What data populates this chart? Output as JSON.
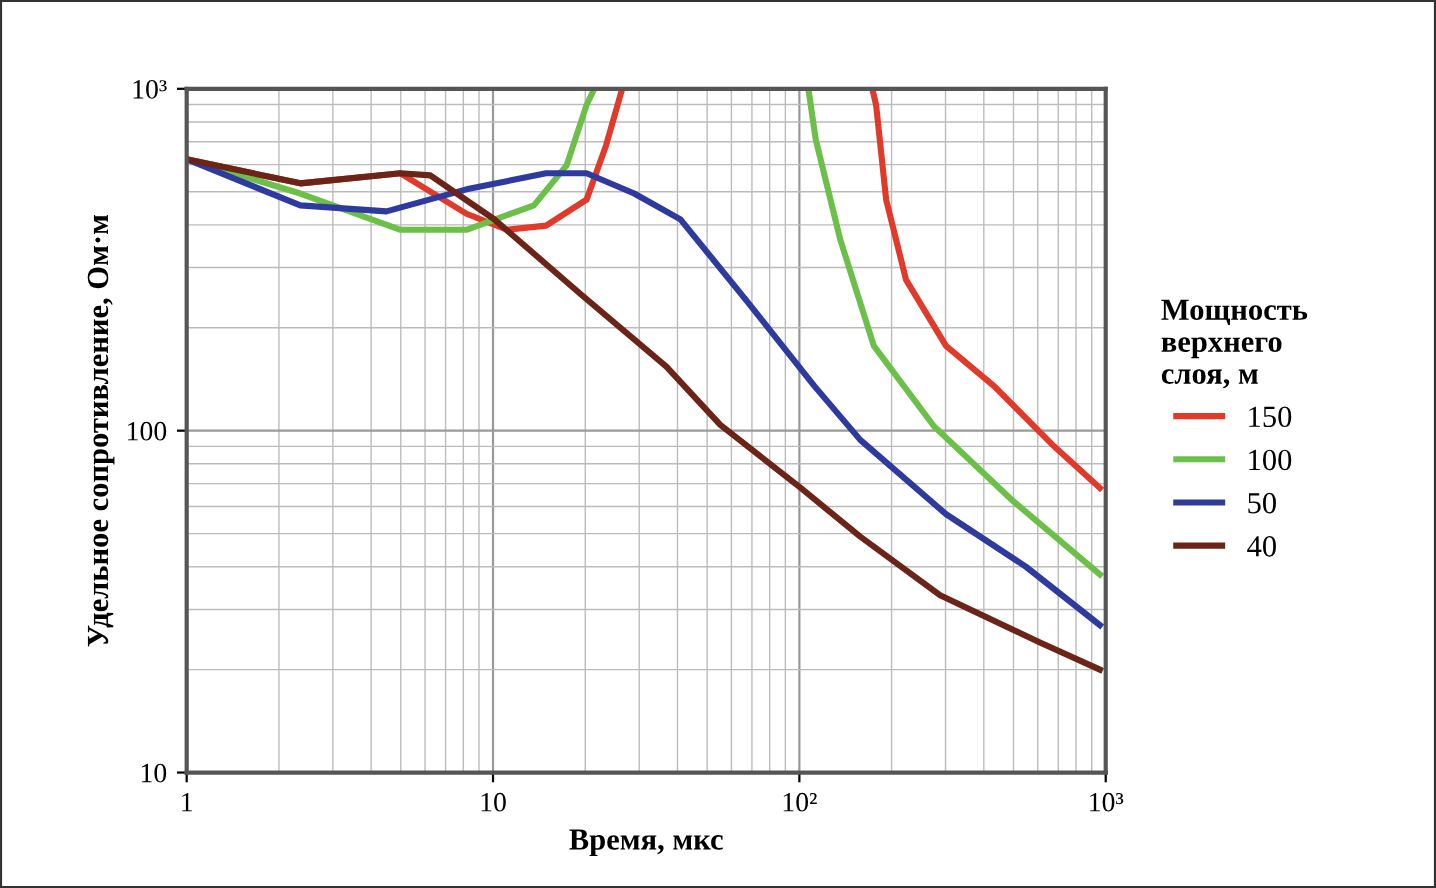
{
  "chart_data": {
    "type": "line",
    "xlabel": "Время, мкс",
    "ylabel": "Удельное сопротивление, Ом·м",
    "legend_title": "Мощность\nверхнего\nслоя, м",
    "log": "xy",
    "xlim": [
      1,
      1000
    ],
    "ylim": [
      10,
      1000
    ],
    "xticks": [
      1,
      10,
      {
        "value": 100,
        "label": "10²"
      },
      {
        "value": 1000,
        "label": "10³"
      }
    ],
    "yticks": [
      10,
      100,
      {
        "value": 1000,
        "label": "10³"
      }
    ],
    "grid": true,
    "legend": "right",
    "marker": "none",
    "line_style": "solid",
    "series": [
      {
        "name": "150",
        "color": "#e03a2a",
        "x": [
          1,
          2.35,
          4.99,
          8.19,
          11.1,
          14.9,
          20.2,
          23.4,
          26.4,
          null,
          173,
          178,
          192,
          223,
          301,
          432,
          678,
          957
        ],
        "values": [
          622,
          529,
          566,
          431,
          387,
          398,
          474,
          684,
          1000,
          null,
          1000,
          897,
          474,
          276,
          177,
          135,
          90,
          68
        ]
      },
      {
        "name": "100",
        "color": "#6cc04a",
        "x": [
          1,
          2.35,
          4.99,
          8.19,
          13.6,
          17.4,
          20.2,
          21.4,
          null,
          107,
          113,
          136,
          175,
          275,
          501,
          957
        ],
        "values": [
          622,
          494,
          387,
          387,
          456,
          598,
          897,
          1000,
          null,
          1000,
          713,
          362,
          177,
          103,
          62,
          38
        ]
      },
      {
        "name": "50",
        "color": "#2e3a9e",
        "x": [
          1,
          2.35,
          4.49,
          8.19,
          14.9,
          20.2,
          28.9,
          40.9,
          67,
          112,
          158,
          301,
          549,
          957
        ],
        "values": [
          622,
          456,
          438,
          508,
          566,
          566,
          494,
          415,
          241,
          135,
          94,
          57,
          40,
          27
        ]
      },
      {
        "name": "40",
        "color": "#6b2418",
        "x": [
          1,
          2.35,
          4.99,
          6.25,
          10.1,
          19.3,
          36.8,
          55.2,
          101,
          158,
          288,
          610,
          957
        ],
        "values": [
          622,
          529,
          566,
          558,
          415,
          251,
          154,
          104,
          68,
          49,
          33,
          24,
          20
        ]
      }
    ]
  }
}
